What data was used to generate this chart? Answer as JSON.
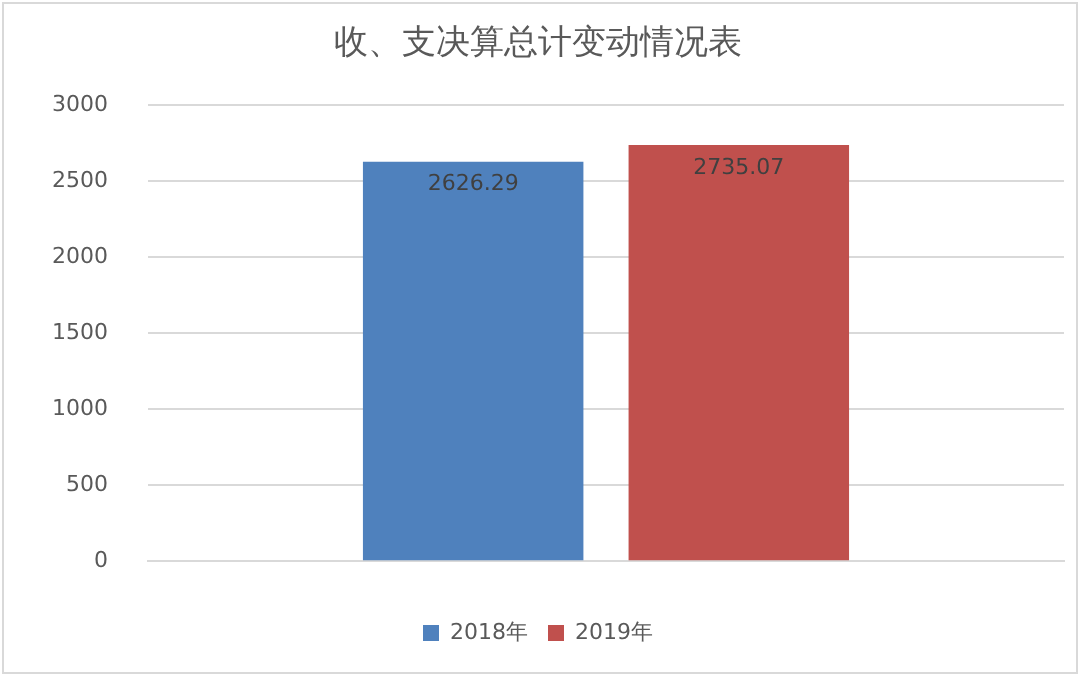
{
  "chart_data": {
    "type": "bar",
    "title": "收、支决算总计变动情况表",
    "categories": [
      null
    ],
    "series": [
      {
        "name": "2018年",
        "color": "#4f81bd",
        "values": [
          2626.29
        ]
      },
      {
        "name": "2019年",
        "color": "#c0504d",
        "values": [
          2735.07
        ]
      }
    ],
    "ylim": [
      0,
      3000
    ],
    "yticks": [
      0,
      500,
      1000,
      1500,
      2000,
      2500,
      3000
    ],
    "grid": "y",
    "legend": "bottom",
    "data_labels": true
  }
}
